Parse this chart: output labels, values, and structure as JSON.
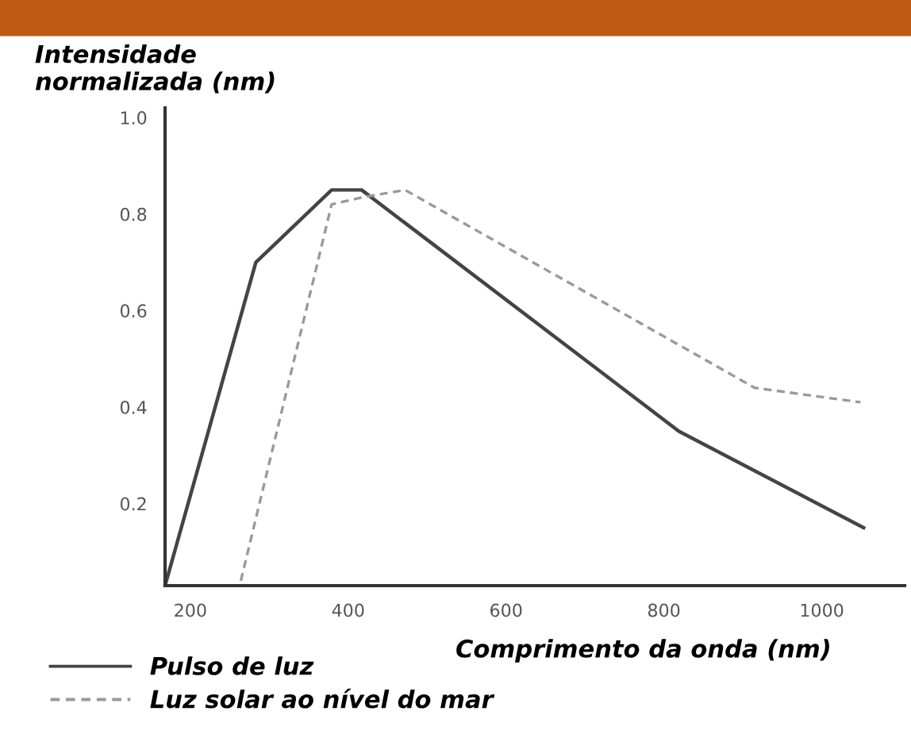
{
  "chart_data": {
    "type": "line",
    "ylabel": "Intensidade\nnormalizada (nm)",
    "xlabel": "Comprimento da onda (nm)",
    "xlim": [
      168,
      1105
    ],
    "ylim": [
      0.03,
      1.02
    ],
    "xticks": [
      200,
      400,
      600,
      800,
      1000
    ],
    "yticks": [
      0.2,
      0.4,
      0.6,
      0.8,
      {
        "value": 1,
        "label": "1.0"
      }
    ],
    "grid": false,
    "legend": "bottom left",
    "marker": "none",
    "series": [
      {
        "name": "Pulso de luz",
        "color": "#444444",
        "line_style": "solid",
        "x": [
          168,
          283,
          379,
          417,
          819,
          1053
        ],
        "values": [
          0.03,
          0.7,
          0.85,
          0.85,
          0.35,
          0.15
        ]
      },
      {
        "name": "Luz solar ao nível do mar",
        "color": "#999999",
        "line_style": "dashed",
        "x": [
          264,
          379,
          419,
          472,
          915,
          1049
        ],
        "values": [
          0.04,
          0.82,
          0.835,
          0.85,
          0.44,
          0.41
        ]
      }
    ]
  }
}
